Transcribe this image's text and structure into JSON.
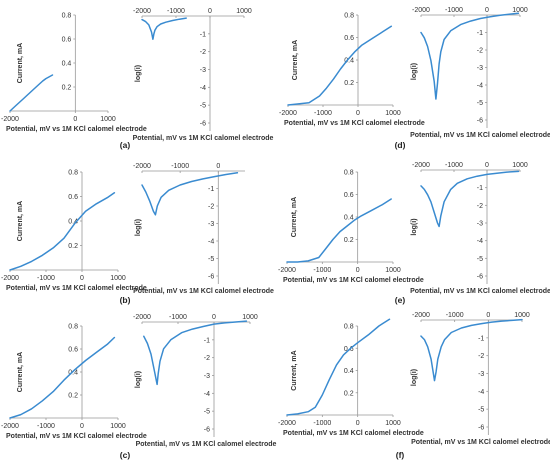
{
  "panels": [
    {
      "label": "(a)",
      "charts": [
        {
          "type": "line",
          "axis": "current",
          "xlabel": "Potential, mV vs 1M KCl calomel electrode",
          "ylabel": "Current, mA",
          "xticks": [
            -2000,
            0,
            1000
          ],
          "yticks": [
            0.8,
            0.6,
            0.4,
            0.2
          ],
          "series": [
            {
              "x": [
                -2000,
                -1800,
                -1600,
                -1400,
                -1200,
                -1000,
                -900,
                -700
              ],
              "y": [
                0.0,
                0.05,
                0.1,
                0.15,
                0.2,
                0.25,
                0.27,
                0.3
              ]
            }
          ]
        },
        {
          "type": "line",
          "axis": "log",
          "xlabel": "Potential, mV vs 1M KCl calomel electrode",
          "ylabel": "log(i)",
          "xticks": [
            -2000,
            -1000,
            0,
            1000
          ],
          "yticks": [
            -1,
            -2,
            -3,
            -4,
            -5,
            -6
          ],
          "series": [
            {
              "x": [
                -2000,
                -1900,
                -1800,
                -1720,
                -1680,
                -1650,
                -1620,
                -1560,
                -1450,
                -1300,
                -1100,
                -900,
                -700
              ],
              "y": [
                -0.2,
                -0.3,
                -0.5,
                -0.9,
                -1.3,
                -1.0,
                -0.8,
                -0.6,
                -0.45,
                -0.35,
                -0.25,
                -0.18,
                -0.12
              ]
            }
          ]
        }
      ]
    },
    {
      "label": "(b)",
      "charts": [
        {
          "type": "line",
          "axis": "current",
          "xlabel": "Potential, mV vs 1M KCl calomel electrode",
          "ylabel": "Current, mA",
          "xticks": [
            -2000,
            -1000,
            0,
            1000
          ],
          "yticks": [
            0.8,
            0.6,
            0.4,
            0.2
          ],
          "series": [
            {
              "x": [
                -2000,
                -1700,
                -1400,
                -1100,
                -800,
                -500,
                -200,
                100,
                400,
                700,
                900
              ],
              "y": [
                0.0,
                0.03,
                0.07,
                0.12,
                0.18,
                0.26,
                0.38,
                0.48,
                0.54,
                0.59,
                0.63
              ]
            }
          ]
        },
        {
          "type": "line",
          "axis": "log",
          "xlabel": "Potential, mV vs 1M KCl calomel electrode",
          "ylabel": "log(i)",
          "xticks": [
            -2000,
            -1000,
            0
          ],
          "yticks": [
            -1,
            -2,
            -3,
            -4,
            -5,
            -6
          ],
          "series": [
            {
              "x": [
                -2000,
                -1900,
                -1800,
                -1700,
                -1650,
                -1600,
                -1500,
                -1300,
                -1000,
                -700,
                -400,
                -100,
                200,
                500
              ],
              "y": [
                -0.8,
                -1.2,
                -1.7,
                -2.3,
                -2.5,
                -2.0,
                -1.5,
                -1.1,
                -0.8,
                -0.6,
                -0.45,
                -0.32,
                -0.2,
                -0.1
              ]
            }
          ]
        }
      ]
    },
    {
      "label": "(c)",
      "charts": [
        {
          "type": "line",
          "axis": "current",
          "xlabel": "Potential, mV vs 1M KCl calomel electrode",
          "ylabel": "Current, mA",
          "xticks": [
            -2000,
            -1000,
            0,
            1000
          ],
          "yticks": [
            0.8,
            0.6,
            0.4,
            0.2
          ],
          "series": [
            {
              "x": [
                -2000,
                -1700,
                -1400,
                -1100,
                -800,
                -500,
                -200,
                100,
                400,
                700,
                900
              ],
              "y": [
                0.0,
                0.03,
                0.08,
                0.15,
                0.23,
                0.33,
                0.42,
                0.5,
                0.57,
                0.64,
                0.7
              ]
            }
          ]
        },
        {
          "type": "line",
          "axis": "log",
          "xlabel": "Potential, mV vs 1M KCl calomel electrode",
          "ylabel": "log(i)",
          "xticks": [
            -2000,
            -1000,
            0,
            1000
          ],
          "yticks": [
            -1,
            -2,
            -3,
            -4,
            -5,
            -6
          ],
          "series": [
            {
              "x": [
                -1950,
                -1850,
                -1750,
                -1650,
                -1580,
                -1550,
                -1500,
                -1400,
                -1200,
                -900,
                -600,
                -300,
                0,
                300,
                600,
                900
              ],
              "y": [
                -0.8,
                -1.2,
                -1.8,
                -2.8,
                -3.5,
                -2.9,
                -2.2,
                -1.5,
                -1.0,
                -0.6,
                -0.4,
                -0.25,
                -0.12,
                -0.05,
                0.0,
                0.05
              ]
            }
          ]
        }
      ]
    },
    {
      "label": "(d)",
      "charts": [
        {
          "type": "line",
          "axis": "current",
          "xlabel": "Potential, mV vs 1M KCl calomel electrode",
          "ylabel": "Current, mA",
          "xticks": [
            -2000,
            -1000,
            0,
            1000
          ],
          "yticks": [
            0.8,
            0.6,
            0.4,
            0.2
          ],
          "series": [
            {
              "x": [
                -2000,
                -1700,
                -1400,
                -1100,
                -900,
                -700,
                -500,
                -300,
                -100,
                100,
                400,
                700,
                950
              ],
              "y": [
                0.0,
                0.01,
                0.02,
                0.08,
                0.15,
                0.23,
                0.32,
                0.4,
                0.47,
                0.53,
                0.59,
                0.65,
                0.7
              ]
            }
          ]
        },
        {
          "type": "line",
          "axis": "log",
          "xlabel": "Potential, mV vs 1M KCl calomel electrode",
          "ylabel": "log(i)",
          "xticks": [
            -2000,
            -1000,
            0,
            1000
          ],
          "yticks": [
            -1,
            -2,
            -3,
            -4,
            -5,
            -6
          ],
          "series": [
            {
              "x": [
                -2000,
                -1900,
                -1800,
                -1700,
                -1600,
                -1550,
                -1500,
                -1450,
                -1400,
                -1300,
                -1100,
                -800,
                -500,
                -200,
                100,
                400,
                700,
                950
              ],
              "y": [
                -1.0,
                -1.3,
                -1.8,
                -2.6,
                -3.8,
                -4.8,
                -3.9,
                -2.8,
                -2.1,
                -1.4,
                -0.9,
                -0.55,
                -0.35,
                -0.2,
                -0.1,
                -0.02,
                0.05,
                0.1
              ]
            }
          ]
        }
      ]
    },
    {
      "label": "(e)",
      "charts": [
        {
          "type": "line",
          "axis": "current",
          "xlabel": "Potential, mV vs 1M KCl calomel electrode",
          "ylabel": "Current, mA",
          "xticks": [
            -2000,
            -1000,
            0,
            1000
          ],
          "yticks": [
            0.8,
            0.6,
            0.4,
            0.2
          ],
          "series": [
            {
              "x": [
                -2000,
                -1700,
                -1400,
                -1100,
                -900,
                -700,
                -500,
                -300,
                -100,
                100,
                400,
                700,
                950
              ],
              "y": [
                0.0,
                0.0,
                0.01,
                0.04,
                0.12,
                0.2,
                0.27,
                0.32,
                0.37,
                0.41,
                0.46,
                0.51,
                0.56
              ]
            }
          ]
        },
        {
          "type": "line",
          "axis": "log",
          "xlabel": "Potential, mV vs 1M KCl calomel electrode",
          "ylabel": "log(i)",
          "xticks": [
            -2000,
            -1000,
            0,
            1000
          ],
          "yticks": [
            -1,
            -2,
            -3,
            -4,
            -5,
            -6
          ],
          "series": [
            {
              "x": [
                -2000,
                -1900,
                -1800,
                -1700,
                -1600,
                -1500,
                -1450,
                -1400,
                -1300,
                -1100,
                -900,
                -600,
                -300,
                0,
                300,
                600,
                950
              ],
              "y": [
                -0.9,
                -1.1,
                -1.4,
                -1.8,
                -2.4,
                -3.0,
                -3.2,
                -2.6,
                -1.8,
                -1.1,
                -0.75,
                -0.5,
                -0.35,
                -0.25,
                -0.18,
                -0.12,
                -0.08
              ]
            }
          ]
        }
      ]
    },
    {
      "label": "(f)",
      "charts": [
        {
          "type": "line",
          "axis": "current",
          "xlabel": "Potential, mV vs 1M KCl calomel electrode",
          "ylabel": "Current, mA",
          "xticks": [
            -2000,
            -1000,
            0,
            1000
          ],
          "yticks": [
            0.8,
            0.6,
            0.4,
            0.2
          ],
          "series": [
            {
              "x": [
                -2000,
                -1700,
                -1400,
                -1200,
                -1000,
                -800,
                -600,
                -400,
                -200,
                0,
                300,
                600,
                900
              ],
              "y": [
                0.0,
                0.01,
                0.03,
                0.07,
                0.18,
                0.32,
                0.45,
                0.54,
                0.6,
                0.65,
                0.72,
                0.8,
                0.86
              ]
            }
          ]
        },
        {
          "type": "line",
          "axis": "log",
          "xlabel": "Potential, mV vs 1M KCl calomel electrode",
          "ylabel": "log(i)",
          "xticks": [
            -2000,
            -1000,
            0,
            1000
          ],
          "yticks": [
            -1,
            -2,
            -3,
            -4,
            -5,
            -6
          ],
          "series": [
            {
              "x": [
                -2000,
                -1900,
                -1800,
                -1700,
                -1650,
                -1600,
                -1550,
                -1500,
                -1400,
                -1300,
                -1100,
                -800,
                -500,
                -200,
                100,
                400,
                700,
                1000
              ],
              "y": [
                -0.9,
                -1.1,
                -1.5,
                -2.2,
                -2.8,
                -3.4,
                -2.9,
                -2.2,
                -1.5,
                -1.1,
                -0.7,
                -0.45,
                -0.3,
                -0.2,
                -0.12,
                -0.06,
                -0.02,
                0.02
              ]
            }
          ]
        }
      ]
    }
  ]
}
